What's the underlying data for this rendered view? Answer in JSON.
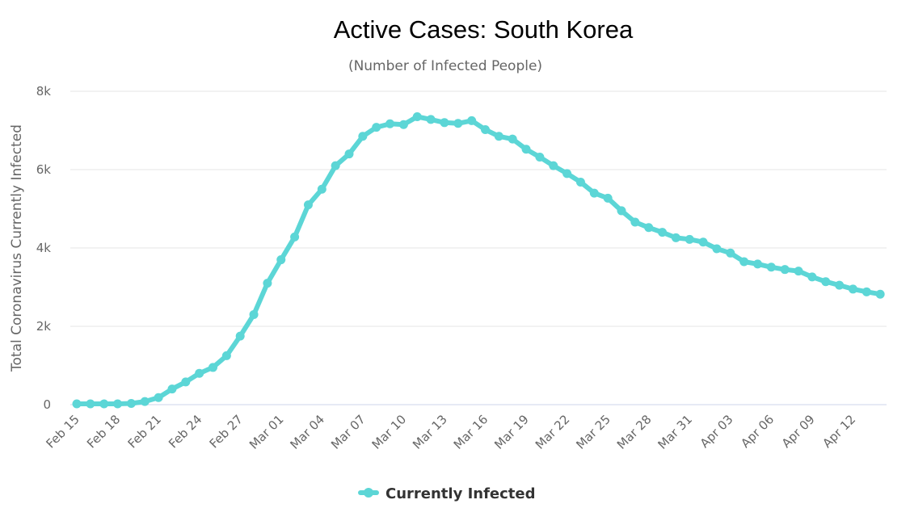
{
  "chart_data": {
    "type": "line",
    "title": "Active Cases: South Korea",
    "subtitle": "(Number of Infected People)",
    "ylabel": "Total Coronavirus Currently Infected",
    "xlabel": "",
    "ylim": [
      0,
      8000
    ],
    "yticks": [
      0,
      2000,
      4000,
      6000,
      8000
    ],
    "ytick_labels": [
      "0",
      "2k",
      "4k",
      "6k",
      "8k"
    ],
    "xtick_labels": [
      "Feb 15",
      "Feb 18",
      "Feb 21",
      "Feb 24",
      "Feb 27",
      "Mar 01",
      "Mar 04",
      "Mar 07",
      "Mar 10",
      "Mar 13",
      "Mar 16",
      "Mar 19",
      "Mar 22",
      "Mar 25",
      "Mar 28",
      "Mar 31",
      "Apr 03",
      "Apr 06",
      "Apr 09",
      "Apr 12"
    ],
    "grid": true,
    "legend_position": "bottom-center",
    "color": "#5cd6d6",
    "x": [
      "Feb 15",
      "Feb 16",
      "Feb 17",
      "Feb 18",
      "Feb 19",
      "Feb 20",
      "Feb 21",
      "Feb 22",
      "Feb 23",
      "Feb 24",
      "Feb 25",
      "Feb 26",
      "Feb 27",
      "Feb 28",
      "Feb 29",
      "Mar 01",
      "Mar 02",
      "Mar 03",
      "Mar 04",
      "Mar 05",
      "Mar 06",
      "Mar 07",
      "Mar 08",
      "Mar 09",
      "Mar 10",
      "Mar 11",
      "Mar 12",
      "Mar 13",
      "Mar 14",
      "Mar 15",
      "Mar 16",
      "Mar 17",
      "Mar 18",
      "Mar 19",
      "Mar 20",
      "Mar 21",
      "Mar 22",
      "Mar 23",
      "Mar 24",
      "Mar 25",
      "Mar 26",
      "Mar 27",
      "Mar 28",
      "Mar 29",
      "Mar 30",
      "Mar 31",
      "Apr 01",
      "Apr 02",
      "Apr 03",
      "Apr 04",
      "Apr 05",
      "Apr 06",
      "Apr 07",
      "Apr 08",
      "Apr 09",
      "Apr 10",
      "Apr 11",
      "Apr 12",
      "Apr 13",
      "Apr 14"
    ],
    "series": [
      {
        "name": "Currently Infected",
        "values": [
          20,
          20,
          20,
          20,
          30,
          80,
          180,
          400,
          580,
          800,
          950,
          1250,
          1750,
          2300,
          3100,
          3700,
          4280,
          5100,
          5500,
          6100,
          6400,
          6850,
          7080,
          7170,
          7150,
          7350,
          7280,
          7200,
          7180,
          7250,
          7020,
          6850,
          6780,
          6520,
          6320,
          6100,
          5900,
          5680,
          5400,
          5270,
          4950,
          4660,
          4520,
          4400,
          4260,
          4220,
          4150,
          3980,
          3870,
          3650,
          3590,
          3510,
          3450,
          3410,
          3260,
          3140,
          3050,
          2950,
          2880,
          2820
        ]
      }
    ]
  }
}
